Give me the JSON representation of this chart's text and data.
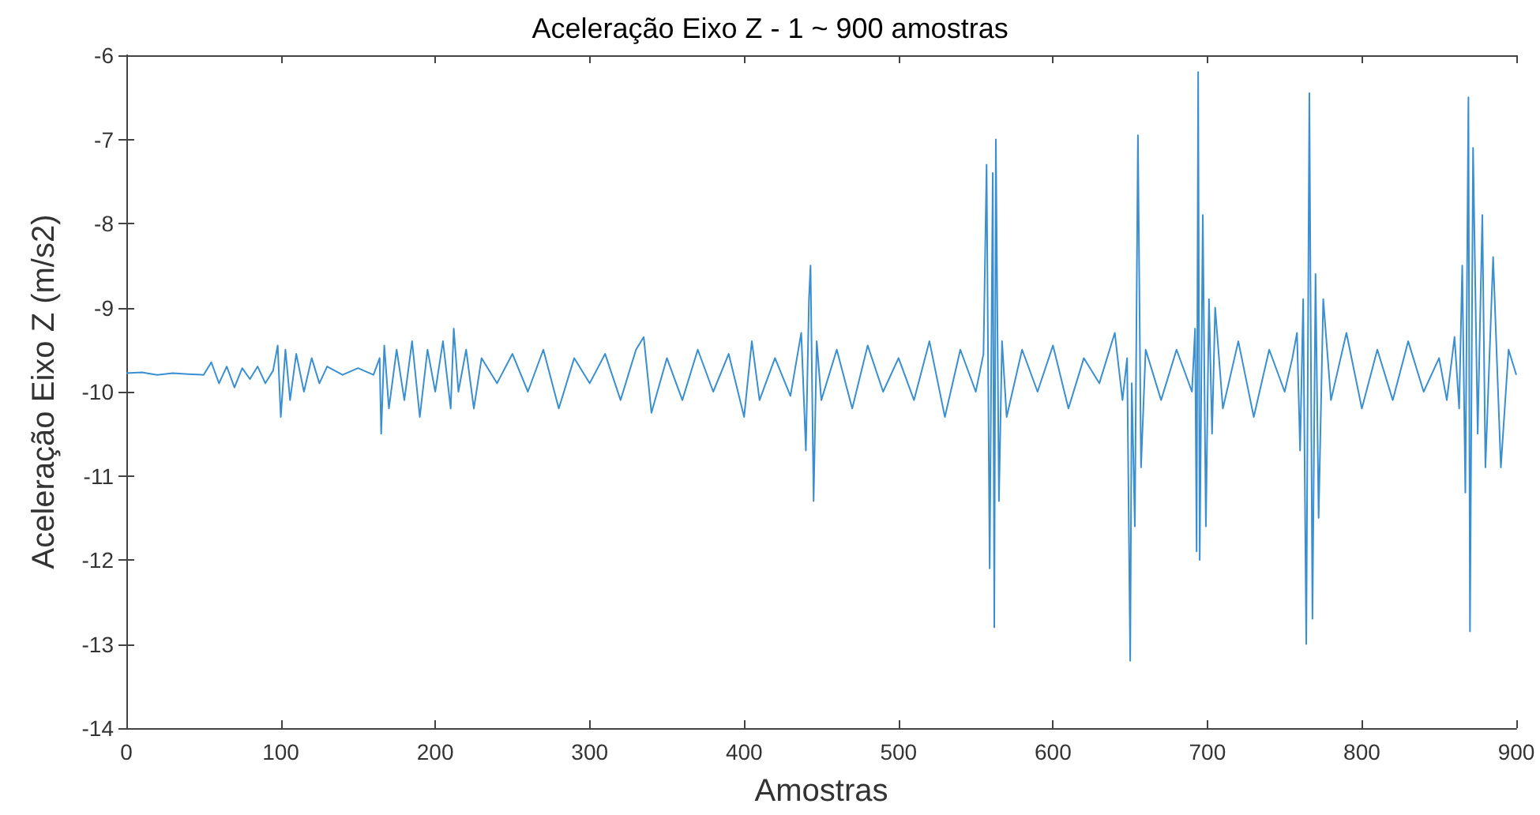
{
  "chart_data": {
    "type": "line",
    "title": "Aceleração Eixo Z - 1 ~ 900 amostras",
    "xlabel": "Amostras",
    "ylabel": "Aceleração Eixo Z (m/s2)",
    "xlim": [
      0,
      900
    ],
    "xticks": [
      0,
      100,
      200,
      300,
      400,
      500,
      600,
      700,
      800,
      900
    ],
    "ylim": [
      -14,
      -6
    ],
    "yticks": [
      -14,
      -13,
      -12,
      -11,
      -10,
      -9,
      -8,
      -7,
      -6
    ],
    "grid": false,
    "marker": "none",
    "line_style": "solid",
    "series": [
      {
        "color": "#3a8fd0",
        "x": [
          0,
          10,
          20,
          30,
          40,
          50,
          55,
          60,
          65,
          70,
          75,
          80,
          85,
          90,
          95,
          98,
          100,
          103,
          106,
          110,
          115,
          120,
          125,
          130,
          140,
          150,
          160,
          164,
          165,
          167,
          170,
          175,
          180,
          185,
          190,
          195,
          200,
          205,
          210,
          212,
          215,
          220,
          225,
          230,
          240,
          250,
          260,
          270,
          280,
          290,
          300,
          310,
          320,
          330,
          335,
          340,
          350,
          360,
          370,
          380,
          390,
          400,
          405,
          410,
          420,
          430,
          437,
          440,
          442,
          443,
          445,
          447,
          450,
          460,
          470,
          480,
          490,
          500,
          510,
          520,
          530,
          540,
          550,
          555,
          557,
          559,
          561,
          562,
          563,
          565,
          567,
          570,
          580,
          590,
          600,
          610,
          620,
          630,
          640,
          645,
          648,
          650,
          651,
          653,
          655,
          657,
          660,
          670,
          680,
          690,
          692,
          693,
          694,
          695,
          697,
          699,
          701,
          703,
          705,
          710,
          720,
          730,
          740,
          750,
          755,
          758,
          760,
          762,
          764,
          766,
          768,
          770,
          772,
          775,
          780,
          790,
          800,
          810,
          820,
          830,
          840,
          850,
          855,
          860,
          863,
          865,
          867,
          869,
          870,
          872,
          875,
          878,
          880,
          885,
          890,
          895,
          900
        ],
        "values": [
          -9.78,
          -9.77,
          -9.8,
          -9.78,
          -9.79,
          -9.8,
          -9.65,
          -9.9,
          -9.7,
          -9.95,
          -9.72,
          -9.85,
          -9.7,
          -9.9,
          -9.75,
          -9.45,
          -10.3,
          -9.5,
          -10.1,
          -9.55,
          -10.0,
          -9.6,
          -9.9,
          -9.7,
          -9.8,
          -9.72,
          -9.8,
          -9.6,
          -10.5,
          -9.45,
          -10.2,
          -9.5,
          -10.1,
          -9.4,
          -10.3,
          -9.5,
          -10.0,
          -9.4,
          -10.2,
          -9.25,
          -10.0,
          -9.5,
          -10.2,
          -9.6,
          -9.9,
          -9.55,
          -10.0,
          -9.5,
          -10.2,
          -9.6,
          -9.9,
          -9.55,
          -10.1,
          -9.5,
          -9.35,
          -10.25,
          -9.6,
          -10.1,
          -9.5,
          -10.0,
          -9.55,
          -10.3,
          -9.4,
          -10.1,
          -9.6,
          -10.05,
          -9.3,
          -10.7,
          -8.9,
          -8.5,
          -11.3,
          -9.4,
          -10.1,
          -9.5,
          -10.2,
          -9.45,
          -10.0,
          -9.6,
          -10.1,
          -9.4,
          -10.3,
          -9.5,
          -10.0,
          -9.55,
          -7.3,
          -12.1,
          -7.4,
          -12.8,
          -7.0,
          -11.3,
          -9.4,
          -10.3,
          -9.5,
          -10.0,
          -9.45,
          -10.2,
          -9.6,
          -9.9,
          -9.3,
          -10.1,
          -9.6,
          -13.2,
          -9.9,
          -11.6,
          -6.95,
          -10.9,
          -9.5,
          -10.1,
          -9.5,
          -10.0,
          -9.25,
          -11.9,
          -6.2,
          -12.0,
          -7.9,
          -11.6,
          -8.9,
          -10.5,
          -9.0,
          -10.2,
          -9.4,
          -10.3,
          -9.5,
          -10.0,
          -9.6,
          -9.3,
          -10.7,
          -8.9,
          -13.0,
          -6.45,
          -12.7,
          -8.6,
          -11.5,
          -8.9,
          -10.1,
          -9.3,
          -10.2,
          -9.5,
          -10.1,
          -9.4,
          -10.0,
          -9.6,
          -10.1,
          -9.35,
          -10.2,
          -8.5,
          -11.2,
          -6.5,
          -12.85,
          -7.1,
          -10.5,
          -7.9,
          -10.9,
          -8.4,
          -10.9,
          -9.5,
          -9.8
        ]
      }
    ]
  }
}
